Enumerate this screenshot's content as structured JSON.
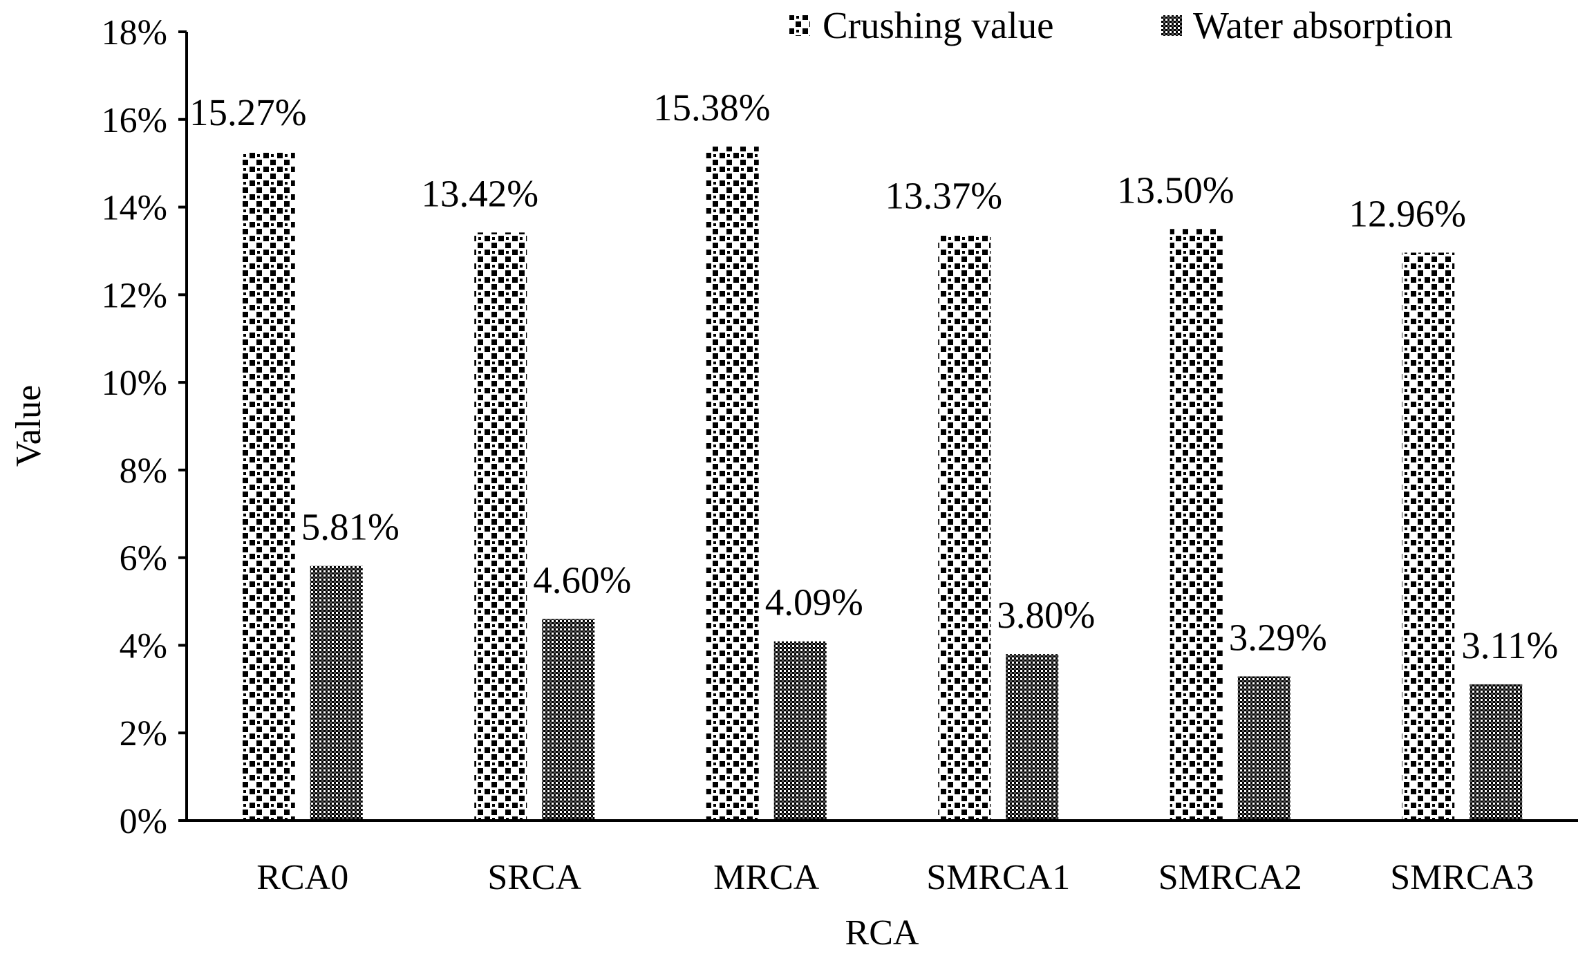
{
  "chart_data": {
    "type": "bar",
    "title": "",
    "xlabel": "RCA",
    "ylabel": "Value",
    "ylim": [
      0,
      18
    ],
    "y_unit": "%",
    "y_ticks": [
      "0%",
      "2%",
      "4%",
      "6%",
      "8%",
      "10%",
      "12%",
      "14%",
      "16%",
      "18%"
    ],
    "grid": false,
    "legend_position": "top-right",
    "categories": [
      "RCA0",
      "SRCA",
      "MRCA",
      "SMRCA1",
      "SMRCA2",
      "SMRCA3"
    ],
    "series": [
      {
        "name": "Crushing value",
        "pattern": "checker-dots",
        "color": "#000000",
        "values": [
          15.27,
          13.42,
          15.38,
          13.37,
          13.5,
          12.96
        ],
        "labels": [
          "15.27%",
          "13.42%",
          "15.38%",
          "13.37%",
          "13.50%",
          "12.96%"
        ]
      },
      {
        "name": "Water absorption",
        "pattern": "fine-grid",
        "color": "#000000",
        "values": [
          5.81,
          4.6,
          4.09,
          3.8,
          3.29,
          3.11
        ],
        "labels": [
          "5.81%",
          "4.60%",
          "4.09%",
          "3.80%",
          "3.29%",
          "3.11%"
        ]
      }
    ]
  }
}
